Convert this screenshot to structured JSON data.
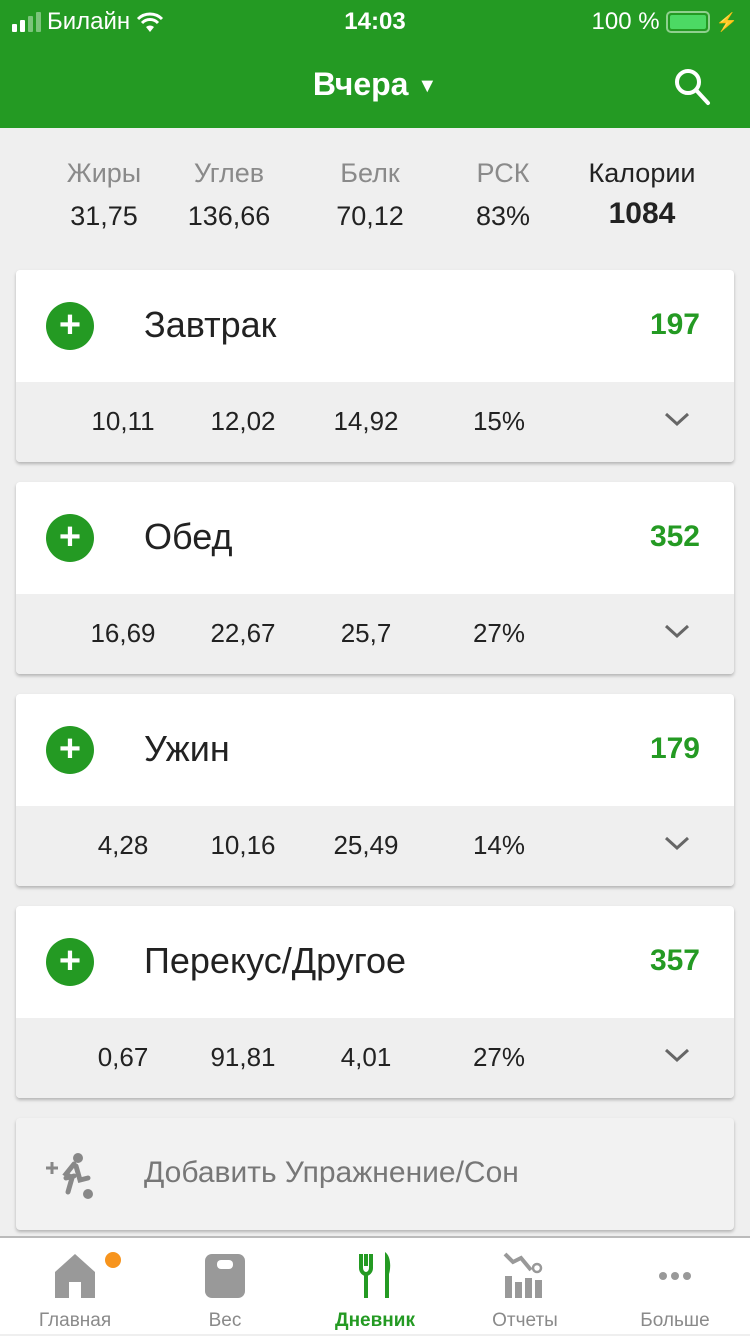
{
  "status": {
    "carrier": "Билайн",
    "time": "14:03",
    "battery": "100 %"
  },
  "header": {
    "title": "Вчера",
    "accent": "#249a23"
  },
  "summary": [
    {
      "label": "Жиры",
      "value": "31,75"
    },
    {
      "label": "Углев",
      "value": "136,66"
    },
    {
      "label": "Белк",
      "value": "70,12"
    },
    {
      "label": "РСК",
      "value": "83%"
    },
    {
      "label": "Калории",
      "value": "1084"
    }
  ],
  "meals": [
    {
      "name": "Завтрак",
      "calories": "197",
      "fat": "10,11",
      "carbs": "12,02",
      "protein": "14,92",
      "rdi": "15%"
    },
    {
      "name": "Обед",
      "calories": "352",
      "fat": "16,69",
      "carbs": "22,67",
      "protein": "25,7",
      "rdi": "27%"
    },
    {
      "name": "Ужин",
      "calories": "179",
      "fat": "4,28",
      "carbs": "10,16",
      "protein": "25,49",
      "rdi": "14%"
    },
    {
      "name": "Перекус/Другое",
      "calories": "357",
      "fat": "0,67",
      "carbs": "91,81",
      "protein": "4,01",
      "rdi": "27%"
    }
  ],
  "exercise": {
    "label": "Добавить Упражнение/Сон",
    "icon": "add-exercise-icon"
  },
  "tabs": [
    {
      "label": "Главная",
      "icon": "home-icon",
      "badge": true
    },
    {
      "label": "Вес",
      "icon": "scale-icon"
    },
    {
      "label": "Дневник",
      "icon": "fork-knife-icon",
      "active": true
    },
    {
      "label": "Отчеты",
      "icon": "chart-icon"
    },
    {
      "label": "Больше",
      "icon": "more-icon"
    }
  ]
}
